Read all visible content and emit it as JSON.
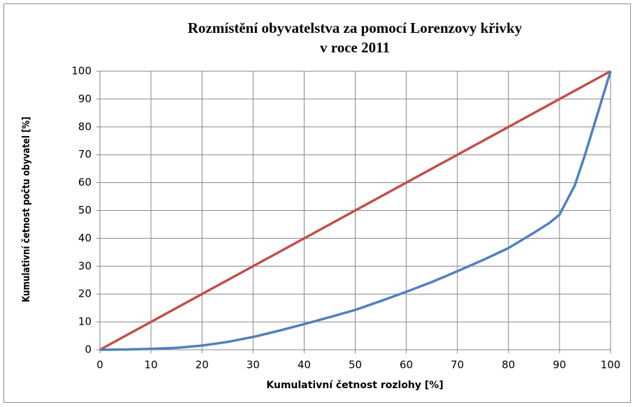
{
  "chart_data": {
    "type": "line",
    "title": [
      "Rozmístění obyvatelstva za pomocí Lorenzovy křivky",
      "v roce 2011"
    ],
    "xlabel": "Kumulativní četnost rozlohy [%]",
    "ylabel": "Kumulativní četnost počtu obyvatel [%]",
    "series": [
      {
        "color": "#c0504d",
        "x": [
          0,
          100
        ],
        "values": [
          0,
          100
        ]
      },
      {
        "color": "#4f81bd",
        "x": [
          0,
          5,
          10,
          15,
          20,
          25,
          30,
          35,
          40,
          45,
          50,
          55,
          60,
          65,
          70,
          75,
          80,
          85,
          88,
          90,
          93,
          95,
          97,
          100
        ],
        "values": [
          0,
          0.1,
          0.3,
          0.7,
          1.5,
          2.8,
          4.6,
          6.8,
          9.2,
          11.7,
          14.3,
          17.5,
          20.8,
          24.3,
          28.2,
          32.2,
          36.5,
          42,
          45.5,
          48.5,
          59,
          70,
          82,
          100
        ]
      }
    ],
    "xlim": [
      0,
      100
    ],
    "xticks": [
      0,
      10,
      20,
      30,
      40,
      50,
      60,
      70,
      80,
      90,
      100
    ],
    "ylim": [
      0,
      100
    ],
    "yticks": [
      0,
      10,
      20,
      30,
      40,
      50,
      60,
      70,
      80,
      90,
      100
    ],
    "grid": true
  }
}
